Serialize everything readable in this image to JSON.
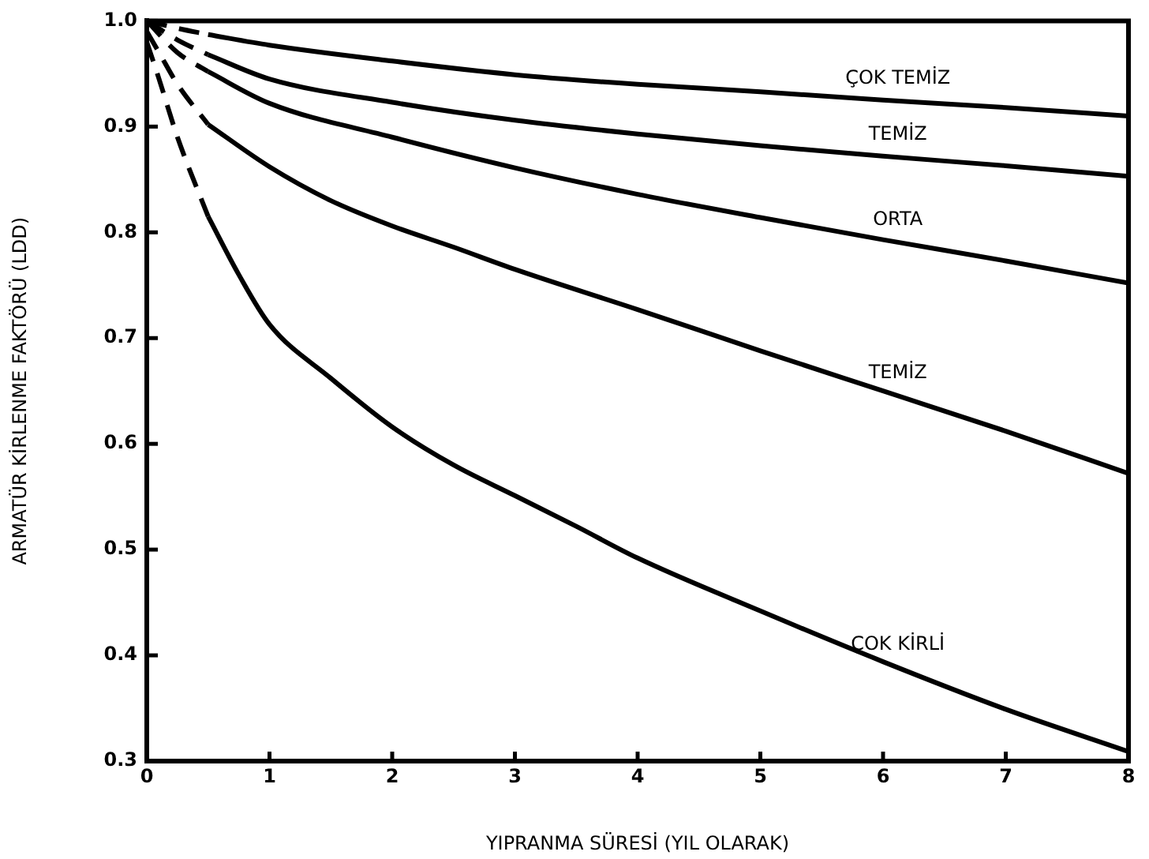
{
  "chart_data": {
    "type": "line",
    "xlabel": "YIPRANMA SÜRESİ (YIL OLARAK)",
    "ylabel": "ARMATÜR KİRLENME FAKTÖRÜ (LDD)",
    "xlim": [
      0,
      8
    ],
    "ylim": [
      0.3,
      1.0
    ],
    "xticks": [
      0,
      1,
      2,
      3,
      4,
      5,
      6,
      7,
      8
    ],
    "yticks": [
      0.3,
      0.4,
      0.5,
      0.6,
      0.7,
      0.8,
      0.9,
      {
        "value": 1,
        "label": "1.0"
      }
    ],
    "series": [
      {
        "color": "#000000",
        "line_style": "dashed",
        "x": [
          0,
          0.25,
          0.5
        ],
        "values": [
          1.0,
          0.993,
          0.987
        ]
      },
      {
        "name": "ÇOK TEMİZ",
        "color": "#000000",
        "line_style": "solid",
        "x": [
          0.5,
          1,
          2,
          3,
          4,
          5,
          6,
          7,
          8
        ],
        "values": [
          0.987,
          0.977,
          0.962,
          0.949,
          0.94,
          0.933,
          0.925,
          0.918,
          0.91
        ]
      },
      {
        "color": "#000000",
        "line_style": "dashed",
        "x": [
          0,
          0.25,
          0.5
        ],
        "values": [
          1.0,
          0.982,
          0.968
        ]
      },
      {
        "name": "TEMİZ",
        "color": "#000000",
        "line_style": "solid",
        "x": [
          0.5,
          1,
          2,
          3,
          4,
          5,
          6,
          7,
          8
        ],
        "values": [
          0.968,
          0.945,
          0.923,
          0.906,
          0.893,
          0.882,
          0.872,
          0.863,
          0.853
        ]
      },
      {
        "color": "#000000",
        "line_style": "dashed",
        "x": [
          0,
          0.25,
          0.5
        ],
        "values": [
          1.0,
          0.97,
          0.952
        ]
      },
      {
        "name": "ORTA",
        "color": "#000000",
        "line_style": "solid",
        "x": [
          0.5,
          1,
          2,
          3,
          4,
          5,
          6,
          7,
          8
        ],
        "values": [
          0.952,
          0.922,
          0.89,
          0.861,
          0.836,
          0.814,
          0.793,
          0.773,
          0.752
        ]
      },
      {
        "color": "#000000",
        "line_style": "dashed",
        "x": [
          0,
          0.1,
          0.25,
          0.5
        ],
        "values": [
          0.99,
          0.97,
          0.94,
          0.902
        ]
      },
      {
        "name": "TEMİZ",
        "color": "#000000",
        "line_style": "solid",
        "x": [
          0.5,
          1,
          1.5,
          2,
          2.5,
          3,
          4,
          5,
          6,
          7,
          8
        ],
        "values": [
          0.902,
          0.862,
          0.83,
          0.806,
          0.786,
          0.765,
          0.727,
          0.688,
          0.65,
          0.612,
          0.572
        ]
      },
      {
        "color": "#000000",
        "line_style": "dashed",
        "x": [
          0,
          0.1,
          0.25,
          0.5
        ],
        "values": [
          0.98,
          0.945,
          0.89,
          0.815
        ]
      },
      {
        "name": "ÇOK KİRLİ",
        "color": "#000000",
        "line_style": "solid",
        "x": [
          0.5,
          0.75,
          1,
          1.5,
          2,
          2.5,
          3,
          3.5,
          4,
          5,
          6,
          7,
          8
        ],
        "values": [
          0.815,
          0.76,
          0.713,
          0.662,
          0.616,
          0.58,
          0.551,
          0.522,
          0.492,
          0.442,
          0.394,
          0.349,
          0.309
        ]
      }
    ]
  }
}
